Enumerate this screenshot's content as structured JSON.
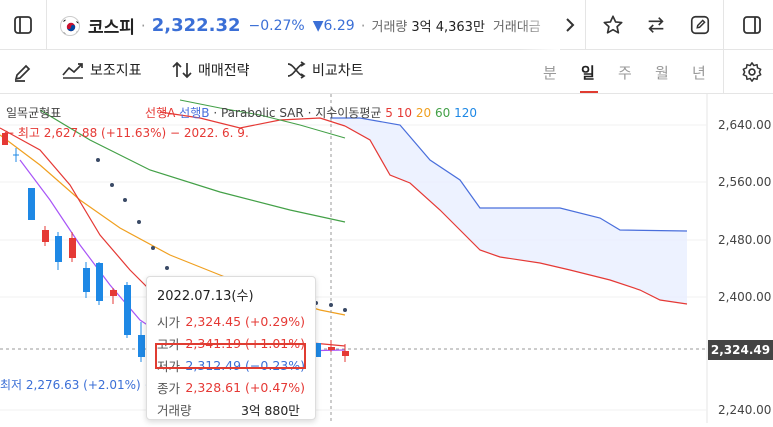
{
  "header": {
    "symbol": "코스피",
    "price": "2,322.32",
    "change_pct": "−0.27%",
    "change_val": "▼6.29",
    "volume_label": "거래량",
    "volume_value": "3억 4,363만",
    "amount_label": "거래대금"
  },
  "toolbar": {
    "indicators": "보조지표",
    "strategy": "매매전략",
    "compare": "비교차트"
  },
  "periods": [
    "분",
    "일",
    "주",
    "월",
    "년"
  ],
  "active_period": "일",
  "legend": {
    "ichimoku": "일목균형표",
    "spanA": "선행A",
    "spanB": "선행B",
    "sar": "Parabolic SAR",
    "ema": "지수이동평균",
    "n5": "5",
    "n10": "10",
    "n20": "20",
    "n60": "60",
    "n120": "120"
  },
  "annotations": {
    "high": "← 최고 2,627.88 (+11.63%) − 2022. 6. 9.",
    "low": "최저 2,276.63 (+2.01%) −"
  },
  "y_axis": [
    "2,640.00",
    "2,560.00",
    "2,480.00",
    "2,400.00",
    "2,240.00"
  ],
  "current_price_tag": "2,324.49",
  "tooltip": {
    "date": "2022.07.13(수)",
    "open_label": "시가",
    "open": "2,324.45 (+0.29%)",
    "high_label": "고가",
    "high": "2,341.19 (+1.01%)",
    "low_label": "저가",
    "low": "2,312.49 (−0.23%)",
    "close_label": "종가",
    "close": "2,328.61 (+0.47%)",
    "vol_label": "거래량",
    "vol": "3억 880만"
  },
  "colors": {
    "up": "#e53935",
    "down": "#1e88e5",
    "accent": "#e03c31",
    "price_blue": "#3b6fd6"
  }
}
